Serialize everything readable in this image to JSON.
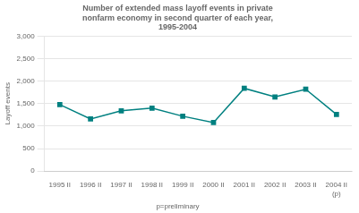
{
  "chart_data": {
    "type": "line",
    "title": "Number of extended mass layoff events in private\nnonfarm economy in second quarter of each year,\n1995-2004",
    "ylabel": "Layoff events",
    "footnote": "p=preliminary",
    "categories": [
      "1995 II",
      "1996 II",
      "1997 II",
      "1998 II",
      "1999 II",
      "2000 II",
      "2001 II",
      "2002 II",
      "2003 II",
      "2004 II\n(p)"
    ],
    "values": [
      1480,
      1160,
      1340,
      1400,
      1220,
      1080,
      1840,
      1650,
      1820,
      1260
    ],
    "color": "#008080",
    "marker": "square",
    "ylim": [
      0,
      3000
    ],
    "yticks": [
      0,
      500,
      {
        "value": 1000,
        "label": "1,000"
      },
      {
        "value": 1500,
        "label": "1,500"
      },
      {
        "value": 2000,
        "label": "2,000"
      },
      {
        "value": 2500,
        "label": "2,500"
      },
      {
        "value": 3000,
        "label": "3,000"
      }
    ],
    "grid": "y"
  }
}
